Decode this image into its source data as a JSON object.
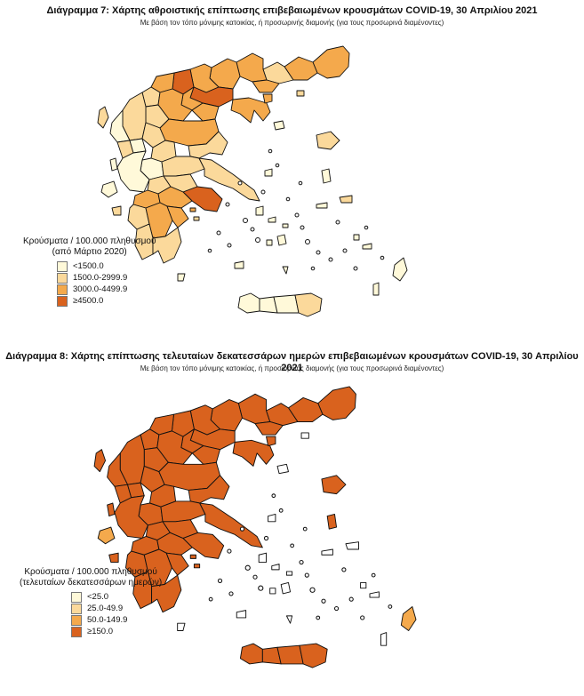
{
  "colors": {
    "c0": "#fff9d9",
    "c1": "#fbd99b",
    "c2": "#f4a94c",
    "c3": "#d9621e",
    "c3dark": "#b84a13",
    "outline": "#111111"
  },
  "map1": {
    "title": "Διάγραμμα 7: Χάρτης αθροιστικής επίπτωσης επιβεβαιωμένων κρουσμάτων COVID-19, 30 Απριλίου 2021",
    "subtitle": "Με βάση τον τόπο μόνιμης κατοικίας, ή προσωρινής διαμονής (για τους προσωρινά διαμένοντες)",
    "legend": {
      "title_line1": "Κρούσματα / 100.000 πληθυσμού",
      "title_line2": "(από Μάρτιο 2020)",
      "items": [
        {
          "label": "<1500.0",
          "color": "#fff9d9"
        },
        {
          "label": "1500.0-2999.9",
          "color": "#fbd99b"
        },
        {
          "label": "3000.0-4499.9",
          "color": "#f4a94c"
        },
        {
          "label": "≥4500.0",
          "color": "#d9621e"
        }
      ]
    }
  },
  "map2": {
    "title": "Διάγραμμα 8: Χάρτης επίπτωσης τελευταίων δεκατεσσάρων ημερών επιβεβαιωμένων κρουσμάτων COVID-19, 30 Απριλίου 2021",
    "subtitle": "Με βάση τον τόπο μόνιμης κατοικίας, ή προσωρινής διαμονής (για τους προσωρινά διαμένοντες)",
    "legend": {
      "title_line1": "Κρούσματα / 100.000 πληθυσμού",
      "title_line2": "(τελευταίων δεκατεσσάρων ημερών)",
      "items": [
        {
          "label": "<25.0",
          "color": "#fff9d9"
        },
        {
          "label": "25.0-49.9",
          "color": "#fbd99b"
        },
        {
          "label": "50.0-149.9",
          "color": "#f4a94c"
        },
        {
          "label": "≥150.0",
          "color": "#d9621e"
        }
      ]
    }
  }
}
